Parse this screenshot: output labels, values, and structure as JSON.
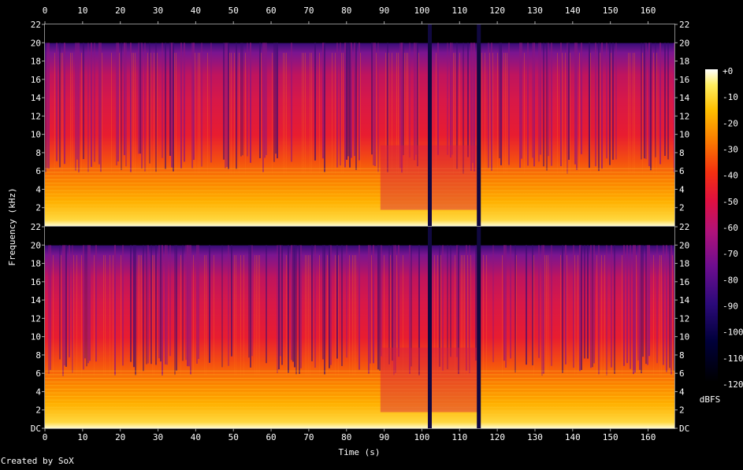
{
  "chart_data": {
    "type": "heatmap",
    "title": "",
    "xlabel": "Time (s)",
    "ylabel": "Frequency (kHz)",
    "xlim": [
      0,
      167
    ],
    "ylim": [
      0,
      22
    ],
    "x_ticks": [
      0,
      10,
      20,
      30,
      40,
      50,
      60,
      70,
      80,
      90,
      100,
      110,
      120,
      130,
      140,
      150,
      160
    ],
    "y_tick_labels_top": [
      "22",
      "20",
      "18",
      "16",
      "14",
      "12",
      "10",
      "8",
      "6",
      "4",
      "2"
    ],
    "y_tick_labels_bottom": [
      "22",
      "20",
      "18",
      "16",
      "14",
      "12",
      "10",
      "8",
      "6",
      "4",
      "2",
      "DC"
    ],
    "channels": 2,
    "colorbar": {
      "label": "dBFS",
      "ticks": [
        "+0",
        "-10",
        "-20",
        "-30",
        "-40",
        "-50",
        "-60",
        "-70",
        "-80",
        "-90",
        "-100",
        "-110",
        "-120"
      ]
    },
    "features": {
      "content_cutoff_khz": 20,
      "low_energy_time_gaps_s": [
        102,
        115
      ],
      "sparse_section_s": [
        89,
        115
      ]
    },
    "footer": "Created by SoX"
  }
}
